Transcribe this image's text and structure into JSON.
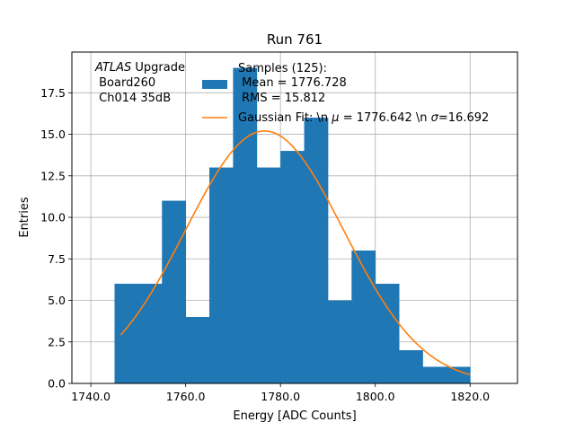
{
  "chart_data": {
    "type": "bar",
    "title": "Run 761",
    "xlabel": "Energy [ADC Counts]",
    "ylabel": "Entries",
    "xlim": [
      1736,
      1830
    ],
    "ylim": [
      0,
      19.95
    ],
    "grid": true,
    "x_ticks": [
      1740,
      1760,
      1780,
      1800,
      1820
    ],
    "x_tick_labels": [
      "1740.0",
      "1760.0",
      "1780.0",
      "1800.0",
      "1820.0"
    ],
    "y_ticks": [
      0,
      2.5,
      5,
      7.5,
      10,
      12.5,
      15,
      17.5
    ],
    "y_tick_labels": [
      "0.0",
      "2.5",
      "5.0",
      "7.5",
      "10.0",
      "12.5",
      "15.0",
      "17.5"
    ],
    "histogram": {
      "bin_edges": [
        1745,
        1750,
        1755,
        1760,
        1765,
        1770,
        1775,
        1780,
        1785,
        1790,
        1795,
        1800,
        1805,
        1810,
        1815,
        1820
      ],
      "counts": [
        6,
        6,
        11,
        4,
        13,
        19,
        13,
        14,
        16,
        5,
        8,
        6,
        2,
        1,
        1
      ],
      "color": "#1f77b4"
    },
    "fit": {
      "mean": 1776.642,
      "sigma": 16.692,
      "peak": 15.2,
      "x_range": [
        1746.3,
        1820
      ],
      "color": "#ff7f0e"
    },
    "annotation": {
      "atlas": "ATLAS",
      "upgrade": " Upgrade",
      "board": " Board260",
      "channel": " Ch014 35dB"
    },
    "legend": {
      "location": "upper-center",
      "hist_line1": "Samples (125):",
      "hist_line2": " Mean = 1776.728",
      "hist_line3": " RMS = 15.812",
      "fit_prefix": "Gaussian Fit: \\n ",
      "fit_mu_symbol": "μ",
      "fit_mid": " = 1776.642 \\n ",
      "fit_sigma_symbol": "σ",
      "fit_suffix": "=16.692"
    }
  }
}
